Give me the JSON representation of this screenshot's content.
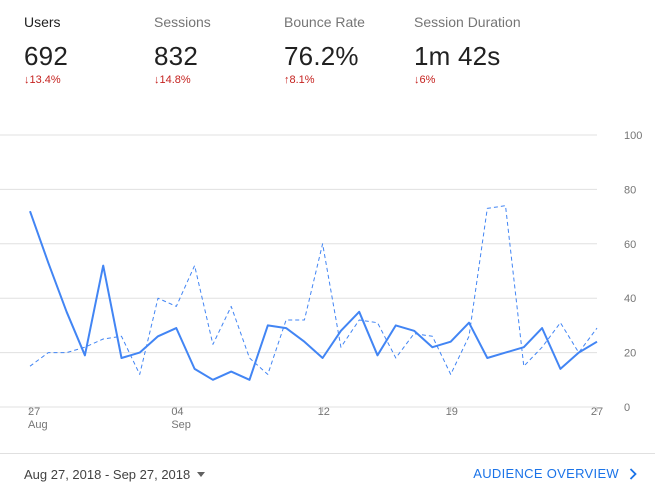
{
  "metrics": [
    {
      "label": "Users",
      "value": "692",
      "change": "↓13.4%",
      "active": true
    },
    {
      "label": "Sessions",
      "value": "832",
      "change": "↓14.8%",
      "active": false
    },
    {
      "label": "Bounce Rate",
      "value": "76.2%",
      "change": "↑8.1%",
      "active": false
    },
    {
      "label": "Session Duration",
      "value": "1m 42s",
      "change": "↓6%",
      "active": false
    }
  ],
  "colors": {
    "series": "#4285f4",
    "change": "#c5221f",
    "link": "#1a73e8",
    "grid": "#e0e0e0",
    "axis_text": "#757575"
  },
  "footer": {
    "date_range": "Aug 27, 2018 - Sep 27, 2018",
    "date_dropdown_icon": "caret-down-icon",
    "overview_link": "AUDIENCE OVERVIEW",
    "overview_icon": "chevron-right-icon"
  },
  "chart_data": {
    "type": "line",
    "y_ticks": [
      "100",
      "80",
      "60",
      "40",
      "20",
      "0"
    ],
    "ylim": [
      0,
      100
    ],
    "y_axis_side": "right",
    "grid": true,
    "x_tick_labels": [
      {
        "index": 0,
        "day": "27",
        "month": "Aug"
      },
      {
        "index": 8,
        "day": "04",
        "month": "Sep"
      },
      {
        "index": 16,
        "day": "12",
        "month": ""
      },
      {
        "index": 23,
        "day": "19",
        "month": ""
      },
      {
        "index": 31,
        "day": "27",
        "month": ""
      }
    ],
    "x": [
      "2018-08-27",
      "2018-08-28",
      "2018-08-29",
      "2018-08-30",
      "2018-08-31",
      "2018-09-01",
      "2018-09-02",
      "2018-09-03",
      "2018-09-04",
      "2018-09-05",
      "2018-09-06",
      "2018-09-07",
      "2018-09-08",
      "2018-09-09",
      "2018-09-10",
      "2018-09-11",
      "2018-09-12",
      "2018-09-13",
      "2018-09-14",
      "2018-09-15",
      "2018-09-16",
      "2018-09-17",
      "2018-09-18",
      "2018-09-19",
      "2018-09-20",
      "2018-09-21",
      "2018-09-22",
      "2018-09-23",
      "2018-09-24",
      "2018-09-25",
      "2018-09-26",
      "2018-09-27"
    ],
    "series": [
      {
        "style": "solid",
        "values": [
          72,
          53,
          35,
          19,
          52,
          18,
          20,
          26,
          29,
          14,
          10,
          13,
          10,
          30,
          29,
          24,
          18,
          28,
          35,
          19,
          30,
          28,
          22,
          24,
          31,
          18,
          20,
          22,
          29,
          14,
          20,
          24
        ]
      },
      {
        "style": "dashed",
        "values": [
          15,
          20,
          20,
          22,
          25,
          26,
          12,
          40,
          37,
          52,
          23,
          37,
          18,
          12,
          32,
          32,
          60,
          22,
          32,
          31,
          18,
          27,
          26,
          12,
          26,
          73,
          74,
          15,
          22,
          31,
          20,
          29
        ]
      }
    ]
  }
}
